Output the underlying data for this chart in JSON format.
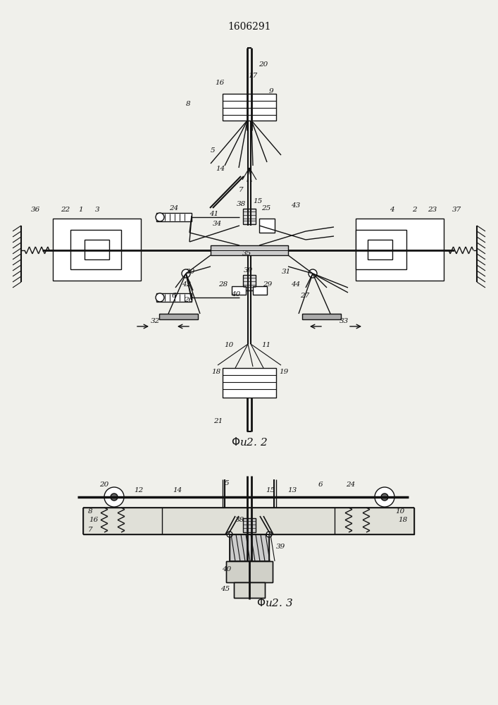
{
  "title": "1606291",
  "bg_color": "#f0f0eb",
  "line_color": "#111111",
  "lw": 1.0
}
